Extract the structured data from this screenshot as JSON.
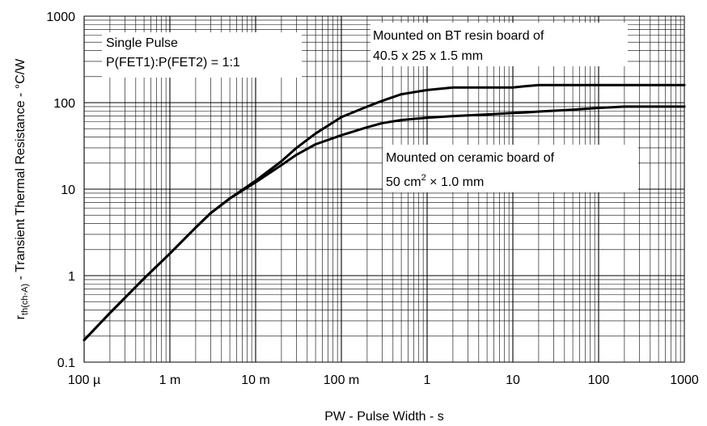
{
  "chart_data": {
    "type": "line",
    "xlabel": "PW - Pulse Width - s",
    "ylabel_main": "r",
    "ylabel_sub": "th(ch-A)",
    "ylabel_rest": " - Transient Thermal Resistance - °C/W",
    "x_scale": "log",
    "y_scale": "log",
    "xlim": [
      0.0001,
      1000
    ],
    "ylim": [
      0.1,
      1000
    ],
    "grid": true,
    "x_ticks": [
      {
        "value": 0.0001,
        "label": "100 µ"
      },
      {
        "value": 0.001,
        "label": "1 m"
      },
      {
        "value": 0.01,
        "label": "10 m"
      },
      {
        "value": 0.1,
        "label": "100 m"
      },
      {
        "value": 1,
        "label": "1"
      },
      {
        "value": 10,
        "label": "10"
      },
      {
        "value": 100,
        "label": "100"
      },
      {
        "value": 1000,
        "label": "1000"
      }
    ],
    "y_ticks": [
      {
        "value": 0.1,
        "label": "0.1"
      },
      {
        "value": 1,
        "label": "1"
      },
      {
        "value": 10,
        "label": "10"
      },
      {
        "value": 100,
        "label": "100"
      },
      {
        "value": 1000,
        "label": "1000"
      }
    ],
    "annotations": {
      "single_pulse_line1": "Single Pulse",
      "single_pulse_line2": "P(FET1):P(FET2) = 1:1",
      "bt_line1": "Mounted on BT resin board of",
      "bt_line2": "40.5 x 25 x 1.5 mm",
      "ceramic_line1": "Mounted on ceramic board of",
      "ceramic_line2_a": "50 cm",
      "ceramic_line2_sup": "2",
      "ceramic_line2_b": " × 1.0 mm"
    },
    "series": [
      {
        "x": [
          0.0001,
          0.0002,
          0.0005,
          0.001,
          0.002,
          0.003,
          0.005,
          0.01,
          0.02,
          0.03,
          0.05,
          0.1,
          0.2,
          0.3,
          0.5,
          1,
          2,
          5,
          10,
          14,
          20,
          50,
          100,
          1000
        ],
        "y": [
          0.18,
          0.37,
          0.93,
          1.8,
          3.6,
          5.3,
          7.8,
          12.5,
          21,
          30,
          44,
          68,
          90,
          105,
          125,
          140,
          150,
          150,
          150,
          155,
          160,
          160,
          160,
          160
        ]
      },
      {
        "x": [
          0.0001,
          0.0002,
          0.0005,
          0.001,
          0.002,
          0.003,
          0.005,
          0.01,
          0.02,
          0.03,
          0.05,
          0.1,
          0.2,
          0.3,
          0.5,
          1,
          2,
          5,
          10,
          14,
          20,
          50,
          100,
          200,
          1000
        ],
        "y": [
          0.18,
          0.37,
          0.93,
          1.8,
          3.6,
          5.3,
          7.8,
          12,
          19,
          25,
          33,
          42,
          52,
          58,
          63,
          67,
          70,
          73,
          76,
          77,
          79,
          83,
          87,
          90,
          90
        ]
      }
    ]
  }
}
